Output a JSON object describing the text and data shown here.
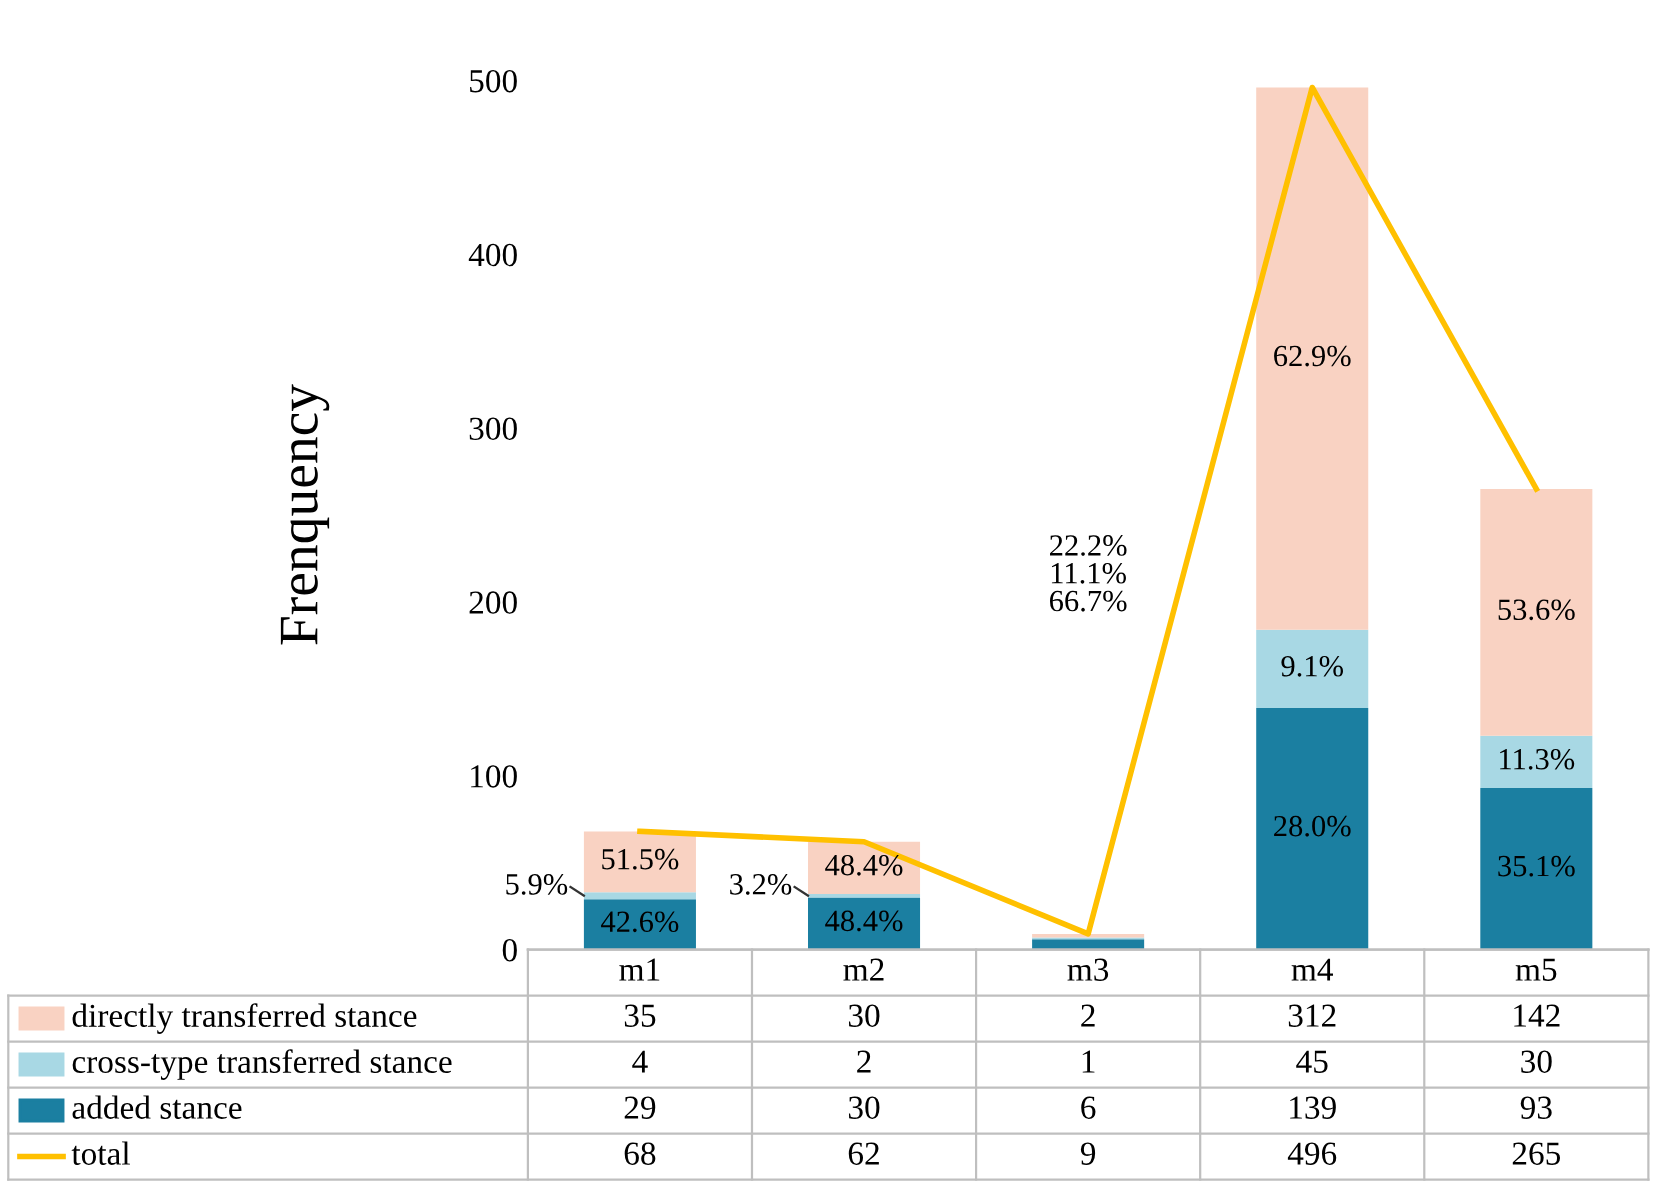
{
  "chart_data": {
    "type": "bar",
    "stacked": true,
    "ylabel": "Frenquency",
    "categories": [
      "m1",
      "m2",
      "m3",
      "m4",
      "m5"
    ],
    "series": [
      {
        "name": "added stance",
        "color": "#1b7fa1",
        "values": [
          29,
          30,
          6,
          139,
          93
        ]
      },
      {
        "name": "cross-type transferred stance",
        "color": "#a8d8e4",
        "values": [
          4,
          2,
          1,
          45,
          30
        ]
      },
      {
        "name": "directly transferred stance",
        "color": "#f9d2c2",
        "values": [
          35,
          30,
          2,
          312,
          142
        ]
      },
      {
        "name": "total",
        "type": "line",
        "color": "#ffc000",
        "values": [
          68,
          62,
          9,
          496,
          265
        ]
      }
    ],
    "annotations": [
      "42.6%",
      "5.9%",
      "51.5%",
      "48.4%",
      "3.2%",
      "48.4%",
      "66.7%",
      "11.1%",
      "22.2%",
      "28.0%",
      "9.1%",
      "62.9%",
      "35.1%",
      "11.3%",
      "53.6%"
    ],
    "ylim": [
      0,
      500
    ],
    "yticks": [
      0,
      100,
      200,
      300,
      400,
      500
    ],
    "grid": false,
    "legend": "bottom",
    "data_labels": true
  }
}
